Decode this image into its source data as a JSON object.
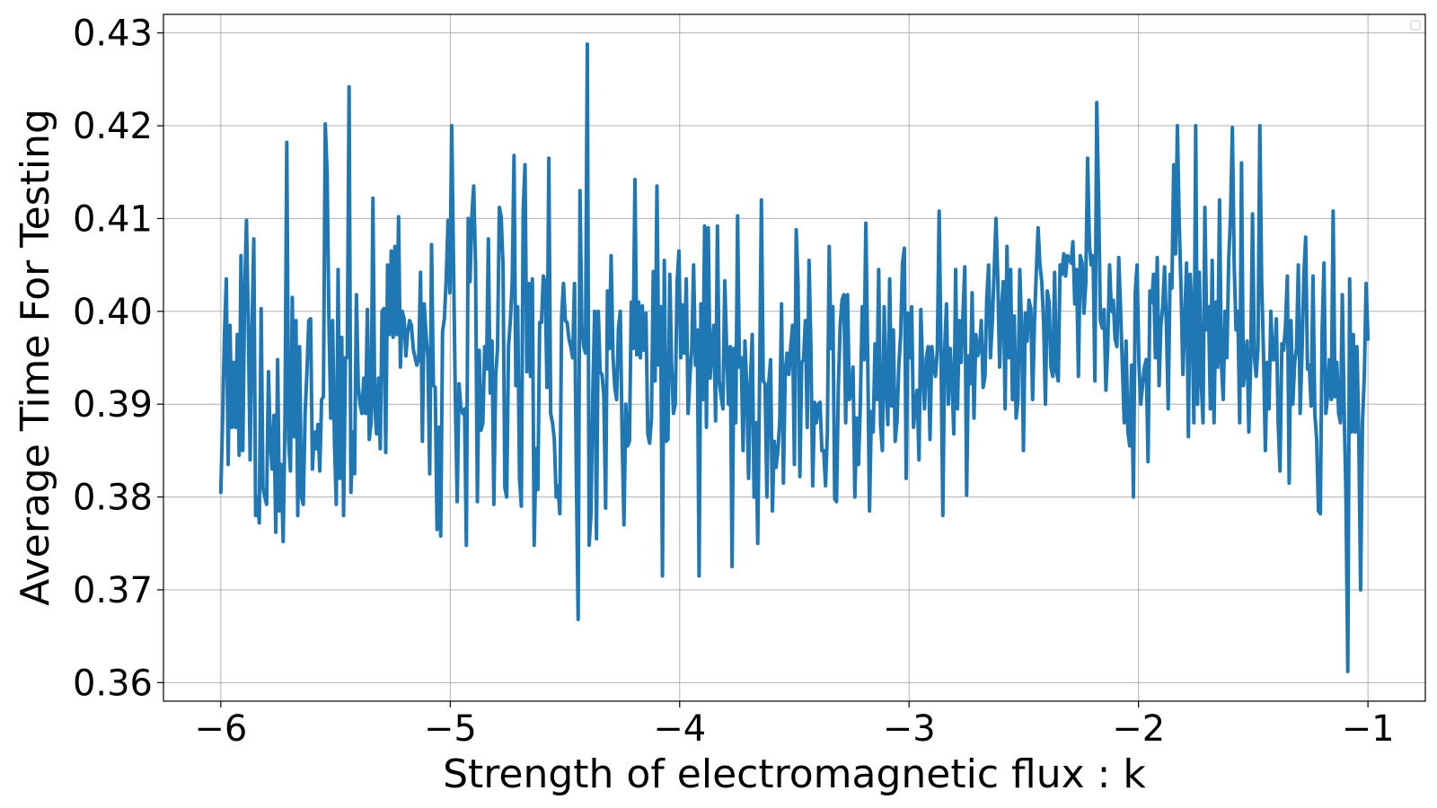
{
  "chart_data": {
    "type": "line",
    "title": "",
    "xlabel": "Strength of electromagnetic flux : k",
    "ylabel": "Average Time For Testing",
    "xlim": [
      -6.25,
      -0.75
    ],
    "ylim": [
      0.358,
      0.432
    ],
    "xticks": [
      -6,
      -5,
      -4,
      -3,
      -2,
      -1
    ],
    "xtick_labels": [
      "−6",
      "−5",
      "−4",
      "−3",
      "−2",
      "−1"
    ],
    "yticks": [
      0.36,
      0.37,
      0.38,
      0.39,
      0.4,
      0.41,
      0.42,
      0.43
    ],
    "ytick_labels": [
      "0.36",
      "0.37",
      "0.38",
      "0.39",
      "0.40",
      "0.41",
      "0.42",
      "0.43"
    ],
    "grid": true,
    "legend": "top-right (empty)",
    "series": [
      {
        "color": "#1f77b4",
        "x_start": -6.0,
        "x_end": -1.0,
        "values": [
          0.3805,
          0.3885,
          0.3975,
          0.4035,
          0.3835,
          0.3985,
          0.3875,
          0.3945,
          0.3875,
          0.3975,
          0.3845,
          0.406,
          0.385,
          0.402,
          0.4098,
          0.3985,
          0.384,
          0.398,
          0.4078,
          0.378,
          0.38,
          0.3772,
          0.4003,
          0.381,
          0.38,
          0.3792,
          0.3935,
          0.386,
          0.383,
          0.3888,
          0.3762,
          0.3948,
          0.3785,
          0.3835,
          0.3752,
          0.388,
          0.4182,
          0.386,
          0.3828,
          0.4015,
          0.3865,
          0.399,
          0.378,
          0.3962,
          0.38,
          0.3792,
          0.389,
          0.3935,
          0.399,
          0.3992,
          0.383,
          0.387,
          0.3852,
          0.3878,
          0.3828,
          0.3905,
          0.3908,
          0.4202,
          0.415,
          0.3988,
          0.3885,
          0.399,
          0.386,
          0.3792,
          0.4045,
          0.382,
          0.3972,
          0.378,
          0.395,
          0.395,
          0.4242,
          0.3805,
          0.387,
          0.3825,
          0.4018,
          0.392,
          0.39,
          0.389,
          0.3928,
          0.389,
          0.4002,
          0.3862,
          0.388,
          0.4122,
          0.3898,
          0.3868,
          0.3928,
          0.3852,
          0.4,
          0.4003,
          0.3848,
          0.405,
          0.3975,
          0.4065,
          0.3972,
          0.407,
          0.3975,
          0.4102,
          0.394,
          0.4,
          0.3992,
          0.3952,
          0.3978,
          0.399,
          0.3985,
          0.396,
          0.395,
          0.3942,
          0.395,
          0.4042,
          0.386,
          0.4008,
          0.3975,
          0.395,
          0.3825,
          0.4072,
          0.392,
          0.3918,
          0.3765,
          0.3875,
          0.3758,
          0.3978,
          0.3992,
          0.4035,
          0.4098,
          0.402,
          0.42,
          0.405,
          0.3905,
          0.3795,
          0.3922,
          0.3895,
          0.389,
          0.3895,
          0.3748,
          0.41,
          0.4032,
          0.4103,
          0.4135,
          0.405,
          0.3795,
          0.3958,
          0.3872,
          0.388,
          0.3962,
          0.3938,
          0.4078,
          0.3912,
          0.3968,
          0.3792,
          0.393,
          0.396,
          0.4112,
          0.4102,
          0.405,
          0.381,
          0.38,
          0.3962,
          0.399,
          0.403,
          0.4168,
          0.392,
          0.4005,
          0.382,
          0.379,
          0.4108,
          0.4158,
          0.3935,
          0.403,
          0.393,
          0.4035,
          0.3748,
          0.3852,
          0.3808,
          0.3988,
          0.3988,
          0.4038,
          0.403,
          0.3918,
          0.4165,
          0.389,
          0.388,
          0.3862,
          0.38,
          0.3812,
          0.3782,
          0.3995,
          0.403,
          0.399,
          0.3988,
          0.397,
          0.3962,
          0.395,
          0.403,
          0.3825,
          0.3668,
          0.413,
          0.3985,
          0.3962,
          0.3955,
          0.4288,
          0.3748,
          0.3782,
          0.3912,
          0.4,
          0.3755,
          0.4,
          0.3935,
          0.3932,
          0.391,
          0.3788,
          0.4022,
          0.396,
          0.406,
          0.3952,
          0.3918,
          0.3905,
          0.3982,
          0.4,
          0.3865,
          0.377,
          0.39,
          0.3855,
          0.386,
          0.401,
          0.396,
          0.4142,
          0.3953,
          0.401,
          0.395,
          0.4006,
          0.3958,
          0.3998,
          0.3868,
          0.3858,
          0.3885,
          0.4043,
          0.3925,
          0.4135,
          0.3942,
          0.4005,
          0.3715,
          0.4055,
          0.386,
          0.3862,
          0.404,
          0.3943,
          0.389,
          0.39,
          0.4032,
          0.4065,
          0.395,
          0.4007,
          0.3955,
          0.4035,
          0.389,
          0.393,
          0.396,
          0.405,
          0.3942,
          0.398,
          0.3715,
          0.4008,
          0.3905,
          0.4092,
          0.3875,
          0.409,
          0.3928,
          0.3958,
          0.3985,
          0.3882,
          0.4092,
          0.3925,
          0.3908,
          0.3895,
          0.4033,
          0.3962,
          0.39,
          0.3962,
          0.3725,
          0.396,
          0.388,
          0.4103,
          0.394,
          0.395,
          0.385,
          0.3968,
          0.392,
          0.382,
          0.3925,
          0.3975,
          0.38,
          0.388,
          0.375,
          0.3925,
          0.412,
          0.3925,
          0.3922,
          0.38,
          0.3922,
          0.3948,
          0.3785,
          0.386,
          0.3832,
          0.385,
          0.3882,
          0.4008,
          0.3815,
          0.3935,
          0.3955,
          0.3932,
          0.3962,
          0.3985,
          0.3835,
          0.4088,
          0.4028,
          0.3822,
          0.3945,
          0.3948,
          0.399,
          0.3875,
          0.4055,
          0.3962,
          0.3812,
          0.3902,
          0.388,
          0.39,
          0.3902,
          0.385,
          0.385,
          0.3812,
          0.387,
          0.407,
          0.396,
          0.4005,
          0.3798,
          0.3795,
          0.392,
          0.3985,
          0.4012,
          0.4018,
          0.388,
          0.4018,
          0.3905,
          0.3915,
          0.394,
          0.38,
          0.3885,
          0.3835,
          0.39,
          0.4005,
          0.3948,
          0.4095,
          0.3952,
          0.3785,
          0.3892,
          0.387,
          0.3965,
          0.3905,
          0.4045,
          0.3878,
          0.385,
          0.4005,
          0.392,
          0.3878,
          0.4035,
          0.3898,
          0.398,
          0.386,
          0.3882,
          0.3942,
          0.3975,
          0.4052,
          0.4068,
          0.382,
          0.3998,
          0.395,
          0.4005,
          0.3875,
          0.39,
          0.3915,
          0.384,
          0.4002,
          0.3935,
          0.3895,
          0.395,
          0.3962,
          0.3862,
          0.3962,
          0.394,
          0.393,
          0.3958,
          0.4108,
          0.396,
          0.378,
          0.3958,
          0.4008,
          0.39,
          0.396,
          0.3925,
          0.3868,
          0.4045,
          0.3895,
          0.399,
          0.3945,
          0.3998,
          0.4048,
          0.3802,
          0.3952,
          0.3922,
          0.402,
          0.3885,
          0.3975,
          0.3952,
          0.396,
          0.399,
          0.3918,
          0.393,
          0.4015,
          0.405,
          0.395,
          0.3988,
          0.4042,
          0.41,
          0.4035,
          0.394,
          0.4002,
          0.4032,
          0.3895,
          0.407,
          0.395,
          0.4045,
          0.3905,
          0.3995,
          0.3885,
          0.3905,
          0.4045,
          0.398,
          0.385,
          0.3998,
          0.3968,
          0.4012,
          0.4003,
          0.3905,
          0.3988,
          0.4042,
          0.409,
          0.405,
          0.4032,
          0.3988,
          0.39,
          0.4022,
          0.401,
          0.394,
          0.393,
          0.4042,
          0.3935,
          0.3925,
          0.405,
          0.404,
          0.4062,
          0.4038,
          0.406,
          0.4058,
          0.4052,
          0.4075,
          0.4008,
          0.4045,
          0.393,
          0.406,
          0.4052,
          0.3998,
          0.403,
          0.4165,
          0.4072,
          0.405,
          0.406,
          0.3925,
          0.4225,
          0.412,
          0.399,
          0.3982,
          0.4002,
          0.3915,
          0.3962,
          0.405,
          0.4,
          0.4012,
          0.397,
          0.3962,
          0.4058,
          0.4002,
          0.394,
          0.388,
          0.3968,
          0.387,
          0.3855,
          0.3942,
          0.38,
          0.402,
          0.405,
          0.3945,
          0.39,
          0.392,
          0.394,
          0.3948,
          0.3838,
          0.4022,
          0.401,
          0.404,
          0.395,
          0.4058,
          0.392,
          0.3985,
          0.4005,
          0.4048,
          0.3985,
          0.3895,
          0.404,
          0.4025,
          0.4158,
          0.4062,
          0.42,
          0.4095,
          0.4025,
          0.3932,
          0.399,
          0.4052,
          0.3865,
          0.404,
          0.4,
          0.388,
          0.42,
          0.39,
          0.4042,
          0.3925,
          0.388,
          0.4112,
          0.398,
          0.4005,
          0.3895,
          0.4055,
          0.388,
          0.401,
          0.394,
          0.412,
          0.3945,
          0.3905,
          0.4,
          0.395,
          0.4055,
          0.4102,
          0.4198,
          0.405,
          0.398,
          0.4,
          0.388,
          0.416,
          0.392,
          0.394,
          0.3968,
          0.387,
          0.3945,
          0.4105,
          0.3952,
          0.393,
          0.3962,
          0.42,
          0.403,
          0.3955,
          0.385,
          0.3945,
          0.3895,
          0.4,
          0.3948,
          0.3948,
          0.3992,
          0.388,
          0.3828,
          0.3965,
          0.3958,
          0.3985,
          0.4038,
          0.3815,
          0.399,
          0.39,
          0.3945,
          0.396,
          0.405,
          0.389,
          0.3955,
          0.4038,
          0.408,
          0.3938,
          0.3942,
          0.3898,
          0.4038,
          0.389,
          0.3862,
          0.3785,
          0.3782,
          0.398,
          0.4052,
          0.389,
          0.391,
          0.3948,
          0.3905,
          0.4108,
          0.3908,
          0.3945,
          0.389,
          0.388,
          0.4018,
          0.3895,
          0.38,
          0.3612,
          0.4035,
          0.387,
          0.3975,
          0.387,
          0.3962,
          0.3865,
          0.37,
          0.388,
          0.393,
          0.403,
          0.397
        ]
      }
    ]
  }
}
